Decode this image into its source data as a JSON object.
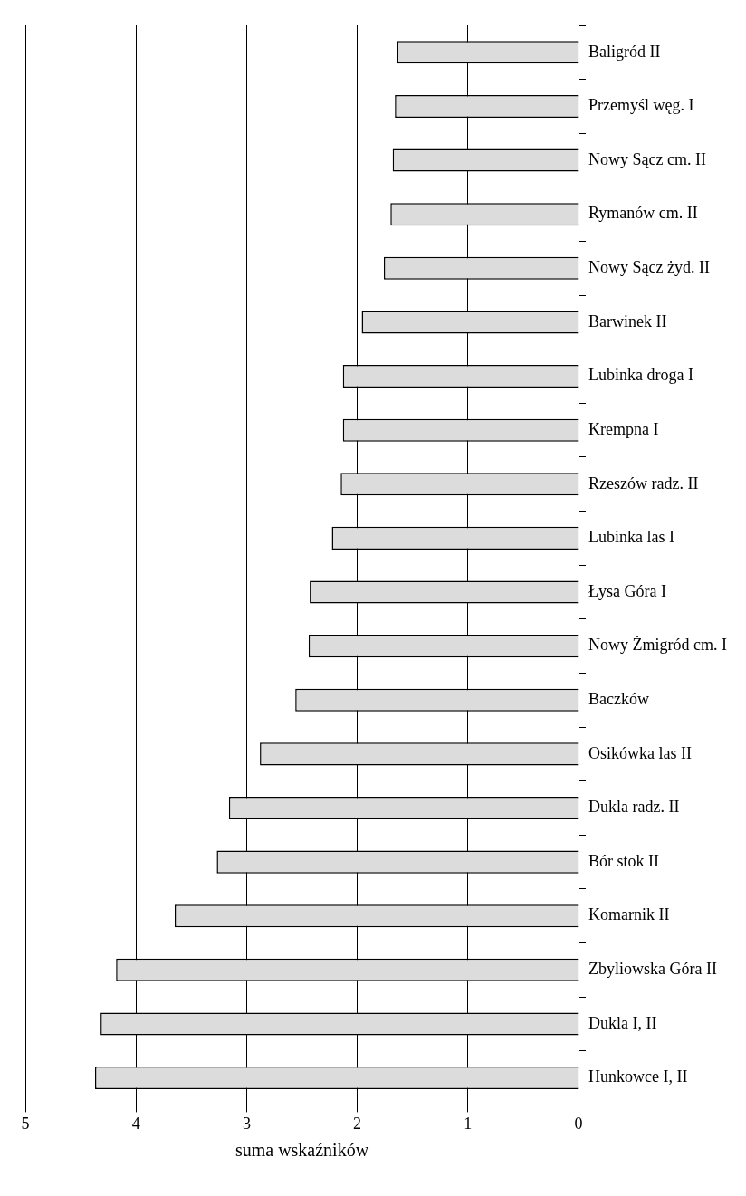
{
  "chart_data": {
    "type": "bar",
    "orientation": "horizontal",
    "xlabel": "suma wskaźników",
    "categories": [
      "Baligród II",
      "Przemyśl węg. I",
      "Nowy Sącz cm. II",
      "Rymanów cm. II",
      "Nowy Sącz żyd. II",
      "Barwinek II",
      "Lubinka droga I",
      "Krempna I",
      "Rzeszów radz. II",
      "Lubinka las I",
      "Łysa Góra I",
      "Nowy Żmigród cm. I",
      "Baczków",
      "Osikówka las II",
      "Dukla radz. II",
      "Bór stok II",
      "Komarnik II",
      "Zbyliowska Góra II",
      "Dukla I, II",
      "Hunkowce I, II"
    ],
    "values": [
      1.64,
      1.66,
      1.68,
      1.7,
      1.76,
      1.96,
      2.13,
      2.13,
      2.15,
      2.23,
      2.43,
      2.44,
      2.56,
      2.88,
      3.16,
      3.27,
      3.65,
      4.18,
      4.32,
      4.37
    ],
    "color": "#dcdcdc",
    "xlim": [
      5,
      0
    ],
    "xticks": [
      5,
      4,
      3,
      2,
      1,
      0
    ],
    "grid": "x",
    "legend": false
  }
}
